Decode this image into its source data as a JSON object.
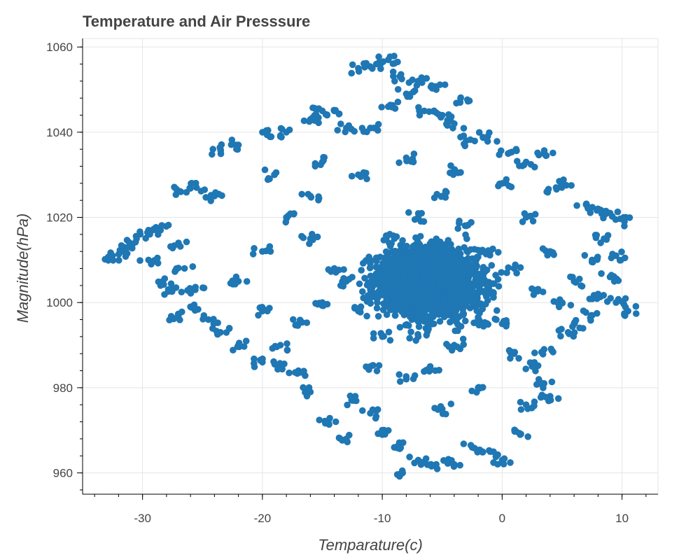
{
  "chart_data": {
    "type": "scatter",
    "title": "Temperature and Air Presssure",
    "xlabel": "Temparature(c)",
    "ylabel": "Magnitude(hPa)",
    "xlim": [
      -35,
      13
    ],
    "ylim": [
      955,
      1062
    ],
    "x_ticks": [
      -30,
      -20,
      -10,
      0,
      10
    ],
    "y_ticks": [
      960,
      980,
      1000,
      1020,
      1040,
      1060
    ],
    "grid": true,
    "color": "#1f77b4",
    "series": [
      {
        "points": [
          [
            -32.5,
            1011
          ],
          [
            -31.8,
            1012
          ],
          [
            -31,
            1013
          ],
          [
            -30.5,
            1015
          ],
          [
            -29.5,
            1017
          ],
          [
            -28.5,
            1017
          ],
          [
            -27,
            1014
          ],
          [
            -29.5,
            1010
          ],
          [
            -28.3,
            1005
          ],
          [
            -27.5,
            1003
          ],
          [
            -26.5,
            1008
          ],
          [
            -25.6,
            1003
          ],
          [
            -27,
            997
          ],
          [
            -26,
            999
          ],
          [
            -24.5,
            996
          ],
          [
            -23.5,
            993
          ],
          [
            -22,
            990
          ],
          [
            -20,
            986
          ],
          [
            -18.5,
            985
          ],
          [
            -26.8,
            1026
          ],
          [
            -25.5,
            1027
          ],
          [
            -24,
            1025
          ],
          [
            -23.5,
            1036
          ],
          [
            -22,
            1037
          ],
          [
            -20,
            1040
          ],
          [
            -18,
            1040
          ],
          [
            -16,
            1043
          ],
          [
            -15,
            1045
          ],
          [
            -14,
            1045
          ],
          [
            -13,
            1041
          ],
          [
            -11,
            1041
          ],
          [
            -9.5,
            1046
          ],
          [
            -8,
            1049
          ],
          [
            -6.5,
            1045
          ],
          [
            -5,
            1044
          ],
          [
            -4,
            1042
          ],
          [
            -3.5,
            1047
          ],
          [
            -5.5,
            1050
          ],
          [
            -7,
            1052
          ],
          [
            -8.5,
            1053
          ],
          [
            -10.5,
            1056
          ],
          [
            -12,
            1055
          ],
          [
            -9.5,
            1057
          ],
          [
            -3,
            1038
          ],
          [
            -1.2,
            1039
          ],
          [
            0.5,
            1035
          ],
          [
            2,
            1033
          ],
          [
            3.5,
            1035
          ],
          [
            4.5,
            1027
          ],
          [
            5,
            1028
          ],
          [
            7,
            1023
          ],
          [
            8,
            1022
          ],
          [
            9,
            1021
          ],
          [
            10.2,
            1019
          ],
          [
            8.5,
            1015
          ],
          [
            9.5,
            1011
          ],
          [
            7.5,
            1010
          ],
          [
            9,
            1006
          ],
          [
            8,
            1002
          ],
          [
            10.5,
            998
          ],
          [
            9.5,
            1000
          ],
          [
            7.5,
            997
          ],
          [
            6,
            995
          ],
          [
            5.5,
            993
          ],
          [
            3.5,
            989
          ],
          [
            2.5,
            985
          ],
          [
            3.5,
            981
          ],
          [
            4,
            978
          ],
          [
            2,
            976
          ],
          [
            1.5,
            969
          ],
          [
            0,
            963
          ],
          [
            -1,
            965
          ],
          [
            -2.5,
            966
          ],
          [
            -4,
            962
          ],
          [
            -5.5,
            962
          ],
          [
            -7,
            963
          ],
          [
            -8.3,
            960
          ],
          [
            -9,
            966
          ],
          [
            -10,
            969
          ],
          [
            -11,
            974
          ],
          [
            -12.5,
            977
          ],
          [
            -13,
            968
          ],
          [
            -14.5,
            972
          ],
          [
            -16,
            979
          ],
          [
            -17,
            984
          ],
          [
            -18.5,
            990
          ],
          [
            -17,
            995
          ],
          [
            -15,
            1000
          ],
          [
            -13,
            1005
          ],
          [
            -11,
            1010
          ],
          [
            -9,
            1015
          ],
          [
            -7,
            1020
          ],
          [
            -5,
            1025
          ],
          [
            -3,
            1018
          ],
          [
            -1,
            1012
          ],
          [
            1,
            1008
          ],
          [
            3,
            1003
          ],
          [
            5,
            1000
          ],
          [
            -2,
            995
          ],
          [
            -4,
            990
          ],
          [
            -6,
            985
          ],
          [
            -8,
            982
          ],
          [
            -10,
            992
          ],
          [
            -12,
            998
          ],
          [
            -14,
            1008
          ],
          [
            -16,
            1015
          ],
          [
            -18,
            1020
          ],
          [
            -20,
            1012
          ],
          [
            -22,
            1005
          ],
          [
            -20,
            998
          ],
          [
            -16,
            1025
          ],
          [
            -12,
            1030
          ],
          [
            -8,
            1034
          ],
          [
            -4,
            1031
          ],
          [
            0,
            1028
          ],
          [
            2,
            1020
          ],
          [
            4,
            1012
          ],
          [
            6,
            1005
          ],
          [
            -6,
            1005
          ],
          [
            -9,
            1000
          ],
          [
            -3,
            1002
          ],
          [
            0,
            995
          ],
          [
            -7,
            992
          ],
          [
            -11,
            985
          ],
          [
            -2,
            980
          ],
          [
            -5,
            975
          ],
          [
            1,
            988
          ],
          [
            -15,
            1033
          ],
          [
            -19,
            1030
          ]
        ]
      }
    ]
  }
}
